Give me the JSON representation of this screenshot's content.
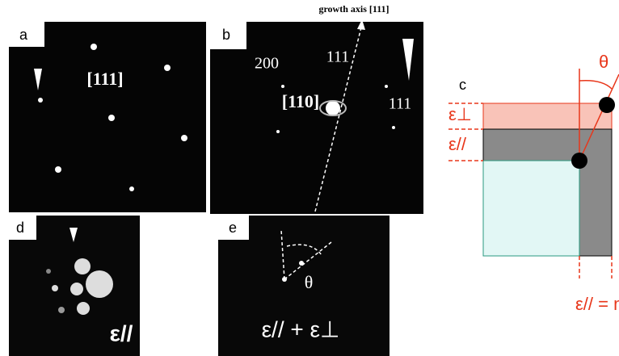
{
  "panels": {
    "a": {
      "label": "a",
      "zone": "[111]"
    },
    "b": {
      "label": "b",
      "caption": "growth axis [111]",
      "zone": "[110]",
      "spots": [
        "200",
        "111",
        "111"
      ]
    },
    "c": {
      "label": "c",
      "angle": "θ",
      "strain_perp": "ε⊥",
      "strain_par": "ε//",
      "mismatch": "ε// = m"
    },
    "d": {
      "label": "d",
      "strain": "ε//"
    },
    "e": {
      "label": "e",
      "angle": "θ",
      "strain_sum": "ε// + ε⊥"
    }
  }
}
